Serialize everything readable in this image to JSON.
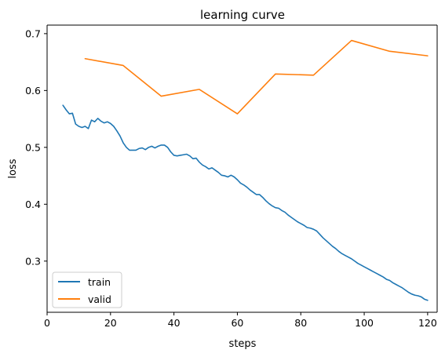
{
  "chart_data": {
    "type": "line",
    "title": "learning curve",
    "xlabel": "steps",
    "ylabel": "loss",
    "xlim": [
      0,
      123
    ],
    "ylim": [
      0.21,
      0.715
    ],
    "xticks": [
      0,
      20,
      40,
      60,
      80,
      100,
      120
    ],
    "yticks": [
      0.3,
      0.4,
      0.5,
      0.6,
      0.7
    ],
    "xtick_labels": [
      "0",
      "20",
      "40",
      "60",
      "80",
      "100",
      "120"
    ],
    "ytick_labels": [
      "0.3",
      "0.4",
      "0.5",
      "0.6",
      "0.7"
    ],
    "grid": false,
    "legend": {
      "placement": "lower-left",
      "entries": [
        "train",
        "valid"
      ]
    },
    "series": [
      {
        "name": "train",
        "color": "#1f77b4",
        "x": [
          5,
          6,
          7,
          8,
          9,
          10,
          11,
          12,
          13,
          14,
          15,
          16,
          17,
          18,
          19,
          20,
          21,
          22,
          23,
          24,
          25,
          26,
          27,
          28,
          29,
          30,
          31,
          32,
          33,
          34,
          35,
          36,
          37,
          38,
          39,
          40,
          41,
          42,
          43,
          44,
          45,
          46,
          47,
          48,
          49,
          50,
          51,
          52,
          53,
          54,
          55,
          56,
          57,
          58,
          59,
          60,
          61,
          62,
          63,
          64,
          65,
          66,
          67,
          68,
          69,
          70,
          71,
          72,
          73,
          74,
          75,
          76,
          77,
          78,
          79,
          80,
          81,
          82,
          83,
          84,
          85,
          86,
          87,
          88,
          89,
          90,
          91,
          92,
          93,
          94,
          95,
          96,
          97,
          98,
          99,
          100,
          101,
          102,
          103,
          104,
          105,
          106,
          107,
          108,
          109,
          110,
          111,
          112,
          113,
          114,
          115,
          116,
          117,
          118,
          119,
          120
        ],
        "y": [
          0.574,
          0.566,
          0.559,
          0.56,
          0.541,
          0.537,
          0.535,
          0.537,
          0.533,
          0.548,
          0.545,
          0.551,
          0.546,
          0.543,
          0.545,
          0.542,
          0.537,
          0.529,
          0.52,
          0.508,
          0.5,
          0.495,
          0.495,
          0.495,
          0.498,
          0.499,
          0.496,
          0.5,
          0.502,
          0.499,
          0.502,
          0.504,
          0.504,
          0.5,
          0.492,
          0.486,
          0.485,
          0.486,
          0.487,
          0.488,
          0.485,
          0.48,
          0.481,
          0.474,
          0.469,
          0.466,
          0.462,
          0.464,
          0.46,
          0.456,
          0.451,
          0.45,
          0.448,
          0.451,
          0.448,
          0.443,
          0.437,
          0.434,
          0.43,
          0.425,
          0.421,
          0.417,
          0.417,
          0.412,
          0.406,
          0.401,
          0.397,
          0.394,
          0.393,
          0.389,
          0.386,
          0.381,
          0.377,
          0.373,
          0.369,
          0.366,
          0.363,
          0.359,
          0.358,
          0.356,
          0.353,
          0.347,
          0.341,
          0.336,
          0.331,
          0.326,
          0.322,
          0.317,
          0.313,
          0.31,
          0.307,
          0.304,
          0.3,
          0.296,
          0.293,
          0.29,
          0.287,
          0.284,
          0.281,
          0.278,
          0.275,
          0.272,
          0.268,
          0.266,
          0.262,
          0.259,
          0.256,
          0.253,
          0.249,
          0.245,
          0.242,
          0.24,
          0.239,
          0.237,
          0.233,
          0.231
        ]
      },
      {
        "name": "valid",
        "color": "#ff7f0e",
        "x": [
          12,
          24,
          36,
          48,
          60,
          72,
          84,
          96,
          108,
          120
        ],
        "y": [
          0.656,
          0.644,
          0.59,
          0.602,
          0.559,
          0.629,
          0.627,
          0.688,
          0.669,
          0.661
        ]
      }
    ]
  }
}
